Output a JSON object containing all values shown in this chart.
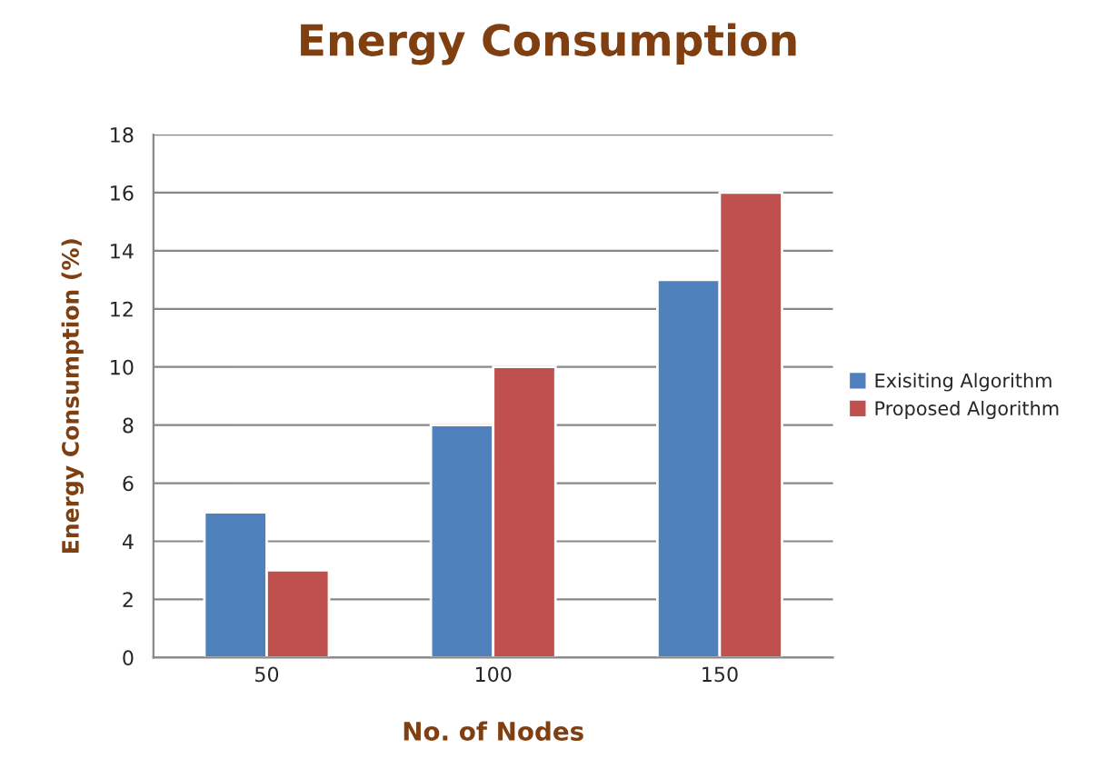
{
  "chart_data": {
    "type": "bar",
    "title": "Energy Consumption",
    "xlabel": "No. of Nodes",
    "ylabel": "Energy Consumption (%)",
    "categories": [
      "50",
      "100",
      "150"
    ],
    "series": [
      {
        "name": "Exisiting Algorithm",
        "color": "#4f81bd",
        "values": [
          5,
          8,
          13
        ]
      },
      {
        "name": "Proposed Algorithm",
        "color": "#c0504d",
        "values": [
          3,
          10,
          16
        ]
      }
    ],
    "ylim": [
      0,
      18
    ],
    "yticks": [
      0,
      2,
      4,
      6,
      8,
      10,
      12,
      14,
      16,
      18
    ],
    "grid": "y",
    "legend": "right"
  }
}
